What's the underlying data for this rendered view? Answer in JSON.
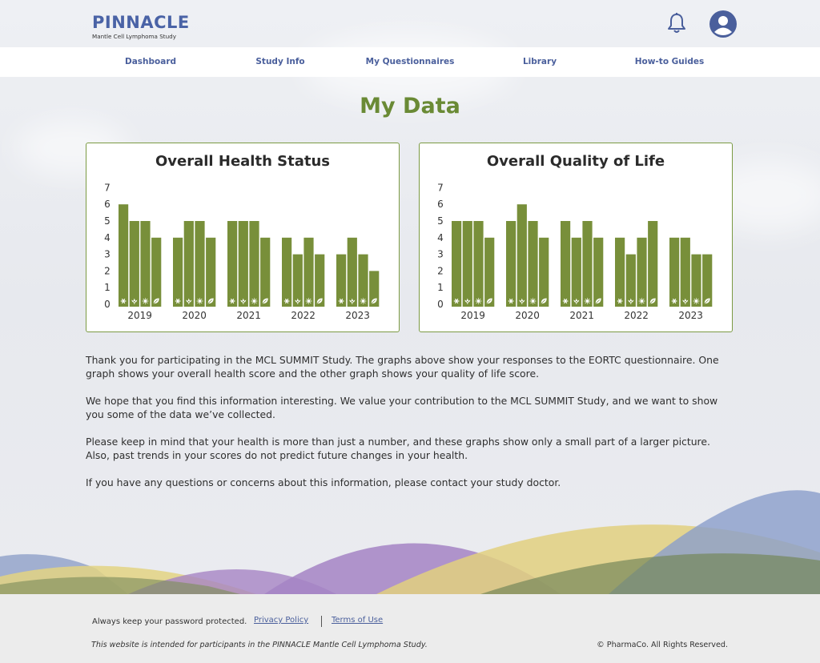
{
  "header": {
    "brand_title": "PINNACLE",
    "brand_subtitle": "Mantle Cell Lymphoma Study",
    "notifications_icon": "bell-icon",
    "profile_icon": "user-avatar-icon"
  },
  "nav": {
    "items": [
      {
        "label": "Dashboard"
      },
      {
        "label": "Study Info"
      },
      {
        "label": "My Questionnaires"
      },
      {
        "label": "Library"
      },
      {
        "label": "How-to Guides"
      }
    ]
  },
  "page": {
    "title": "My Data"
  },
  "chart_data": [
    {
      "type": "bar",
      "title": "Overall Health Status",
      "categories": [
        "2019",
        "2020",
        "2021",
        "2022",
        "2023"
      ],
      "season_icons": [
        "snowflake-icon",
        "flower-icon",
        "sun-icon",
        "leaf-icon"
      ],
      "values": [
        [
          6,
          5,
          5,
          4
        ],
        [
          4,
          5,
          5,
          4
        ],
        [
          5,
          5,
          5,
          4
        ],
        [
          4,
          3,
          4,
          3
        ],
        [
          3,
          4,
          3,
          2
        ]
      ],
      "yticks": [
        "0",
        "1",
        "2",
        "3",
        "4",
        "5",
        "6",
        "7"
      ],
      "ylim": [
        0,
        7
      ],
      "color": "#788f3a"
    },
    {
      "type": "bar",
      "title": "Overall Quality of Life",
      "categories": [
        "2019",
        "2020",
        "2021",
        "2022",
        "2023"
      ],
      "season_icons": [
        "snowflake-icon",
        "flower-icon",
        "sun-icon",
        "leaf-icon"
      ],
      "values": [
        [
          5,
          5,
          5,
          4
        ],
        [
          5,
          6,
          5,
          4
        ],
        [
          5,
          4,
          5,
          4
        ],
        [
          4,
          3,
          4,
          5
        ],
        [
          4,
          4,
          3,
          3
        ]
      ],
      "yticks": [
        "0",
        "1",
        "2",
        "3",
        "4",
        "5",
        "6",
        "7"
      ],
      "ylim": [
        0,
        7
      ],
      "color": "#788f3a"
    }
  ],
  "content": {
    "paragraphs": [
      "Thank you for participating in the MCL SUMMIT Study. The graphs above show your responses to the EORTC questionnaire. One graph shows your overall health score and the other graph shows your quality of life score.",
      "We hope that you find this information interesting. We value your contribution to the MCL SUMMIT Study, and we want to show you some of the data we’ve collected.",
      "Please keep in mind that your health is more than just a number, and these graphs show only a small part of a larger picture. Also, past trends in your scores do not predict future changes in your health.",
      "If you have any questions or concerns about this information, please contact your study doctor."
    ]
  },
  "footer": {
    "note": "Always keep your password protected.",
    "privacy": "Privacy Policy",
    "terms": "Terms of Use",
    "disclaimer": "This website is intended for participants in the PINNACLE Mantle Cell Lymphoma Study.",
    "copyright": "© PharmaCo. All Rights Reserved."
  },
  "colors": {
    "brand_blue": "#4a63a6",
    "accent_green": "#6a8a35",
    "bar_green": "#788f3a",
    "wave_purple": "#9f7bbf",
    "wave_yellow": "#e1cf7e",
    "wave_blue": "#8c9fcb",
    "wave_olive": "#77895a"
  }
}
